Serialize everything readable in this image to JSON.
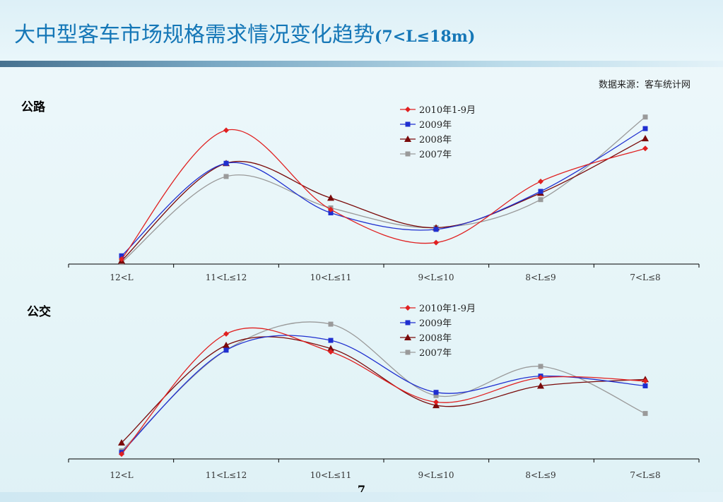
{
  "title": "大中型客车市场规格需求情况变化趋势",
  "title_suffix": "(7<L≤18m)",
  "source": "数据来源：客车统计网",
  "page_number": "7",
  "colors": {
    "title": "#1577b7",
    "series_2010": "#e02020",
    "series_2009": "#1f2fd0",
    "series_2008": "#7a0a0a",
    "series_2007": "#9a9a9a"
  },
  "chart_data": [
    {
      "type": "line",
      "label": "公路",
      "categories": [
        "12<L",
        "11<L≤12",
        "10<L≤11",
        "9<L≤10",
        "8<L≤9",
        "7<L≤8"
      ],
      "ylim": [
        0,
        100
      ],
      "grid": false,
      "legend": "top-center",
      "series": [
        {
          "name": "2010年1-9月",
          "marker": "diamond",
          "color": "#e02020",
          "values": [
            3,
            81,
            33,
            13,
            50,
            70
          ]
        },
        {
          "name": "2009年",
          "marker": "square",
          "color": "#1f2fd0",
          "values": [
            5,
            61,
            31,
            21,
            44,
            82
          ]
        },
        {
          "name": "2008年",
          "marker": "triangle",
          "color": "#7a0a0a",
          "values": [
            2,
            61,
            40,
            22,
            43,
            76
          ]
        },
        {
          "name": "2007年",
          "marker": "square",
          "color": "#9a9a9a",
          "values": [
            1,
            53,
            34,
            22,
            39,
            89
          ]
        }
      ]
    },
    {
      "type": "line",
      "label": "公交",
      "categories": [
        "12<L",
        "11<L≤12",
        "10<L≤11",
        "9<L≤10",
        "8<L≤9",
        "7<L≤8"
      ],
      "ylim": [
        0,
        100
      ],
      "grid": false,
      "legend": "top-center",
      "series": [
        {
          "name": "2010年1-9月",
          "marker": "diamond",
          "color": "#e02020",
          "values": [
            3,
            77,
            66,
            35,
            50,
            48
          ]
        },
        {
          "name": "2009年",
          "marker": "square",
          "color": "#1f2fd0",
          "values": [
            4,
            67,
            73,
            41,
            51,
            45
          ]
        },
        {
          "name": "2008年",
          "marker": "triangle",
          "color": "#7a0a0a",
          "values": [
            10,
            70,
            68,
            33,
            45,
            49
          ]
        },
        {
          "name": "2007年",
          "marker": "square",
          "color": "#9a9a9a",
          "values": [
            5,
            67,
            83,
            39,
            57,
            28
          ]
        }
      ]
    }
  ]
}
